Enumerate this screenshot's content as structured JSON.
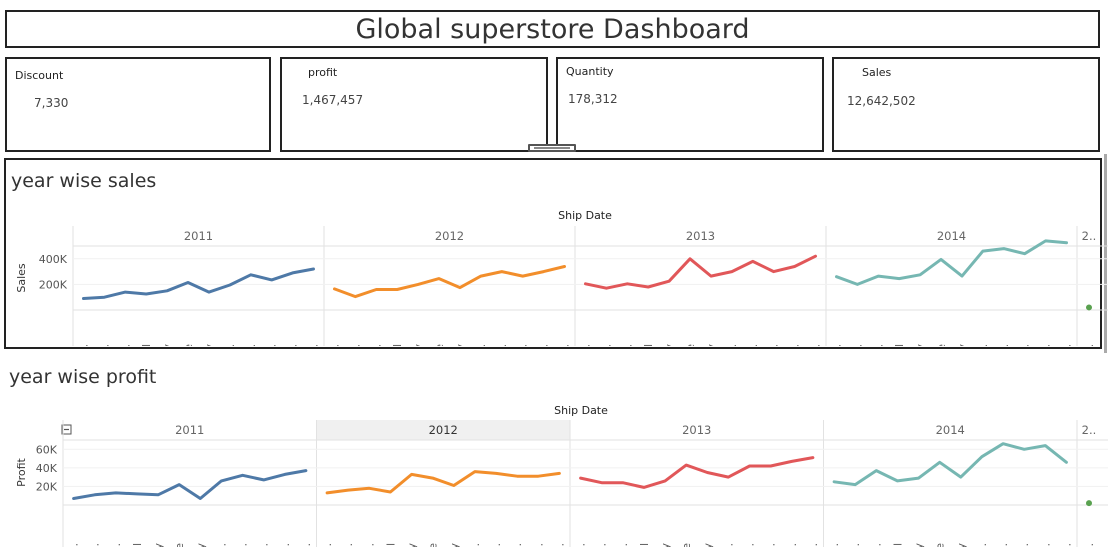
{
  "dashboard": {
    "title": "Global superstore Dashboard"
  },
  "kpis": [
    {
      "label": "Discount",
      "value": "7,330"
    },
    {
      "label": "profit",
      "value": "1,467,457"
    },
    {
      "label": "Quantity",
      "value": "178,312"
    },
    {
      "label": "Sales",
      "value": "12,642,502"
    }
  ],
  "colors": {
    "2011": "#4e79a7",
    "2012": "#f28e2b",
    "2013": "#e15759",
    "2014": "#76b7b2",
    "extra": "#59a14f"
  },
  "chart_data": [
    {
      "type": "line",
      "title": "year wise sales",
      "column_header": "Ship Date",
      "ylabel": "Sales",
      "yticks": [
        "400K",
        "200K"
      ],
      "ylim": [
        0,
        500000
      ],
      "years": [
        "2011",
        "2012",
        "2013",
        "2014",
        "2.."
      ],
      "month_labels": [
        "Jan..",
        "Febr..",
        "Mar..",
        "April",
        "May",
        "June",
        "July",
        "Aug..",
        "Sep..",
        "Oct..",
        "Nov..",
        "Dec.."
      ],
      "extra_month_label": "Jan..",
      "series": [
        {
          "year": "2011",
          "values": [
            90000,
            100000,
            140000,
            125000,
            150000,
            215000,
            140000,
            195000,
            275000,
            235000,
            290000,
            320000
          ]
        },
        {
          "year": "2012",
          "values": [
            165000,
            105000,
            160000,
            160000,
            200000,
            245000,
            175000,
            265000,
            300000,
            265000,
            300000,
            340000
          ]
        },
        {
          "year": "2013",
          "values": [
            205000,
            170000,
            205000,
            180000,
            225000,
            400000,
            265000,
            300000,
            380000,
            300000,
            340000,
            420000
          ]
        },
        {
          "year": "2014",
          "values": [
            260000,
            200000,
            265000,
            245000,
            275000,
            395000,
            265000,
            460000,
            480000,
            440000,
            540000,
            525000
          ]
        },
        {
          "year": "2..",
          "values": [
            20000
          ]
        }
      ]
    },
    {
      "type": "line",
      "title": "year wise profit",
      "column_header": "Ship Date",
      "ylabel": "Profit",
      "yticks": [
        "60K",
        "40K",
        "20K"
      ],
      "ylim": [
        0,
        70000
      ],
      "years": [
        "2011",
        "2012",
        "2013",
        "2014",
        "2.."
      ],
      "month_labels": [
        "Jan..",
        "Febr..",
        "Mar..",
        "April",
        "May",
        "June",
        "July",
        "Sept..",
        "Sept..",
        "Oct..",
        "Nov..",
        "Dec.."
      ],
      "extra_month_label": "Jan..",
      "highlighted_year": "2012",
      "series": [
        {
          "year": "2011",
          "values": [
            7000,
            11000,
            13000,
            12000,
            11000,
            22000,
            7000,
            26000,
            32000,
            27000,
            33000,
            37000
          ]
        },
        {
          "year": "2012",
          "values": [
            13000,
            16000,
            18000,
            14000,
            33000,
            29000,
            21000,
            36000,
            34000,
            31000,
            31000,
            34000
          ]
        },
        {
          "year": "2013",
          "values": [
            29000,
            24000,
            24000,
            19000,
            26000,
            43000,
            35000,
            30000,
            42000,
            42000,
            47000,
            51000
          ]
        },
        {
          "year": "2014",
          "values": [
            25000,
            22000,
            37000,
            26000,
            29000,
            46000,
            30000,
            52000,
            66000,
            60000,
            64000,
            46000
          ]
        },
        {
          "year": "2..",
          "values": [
            2000
          ]
        }
      ]
    }
  ]
}
